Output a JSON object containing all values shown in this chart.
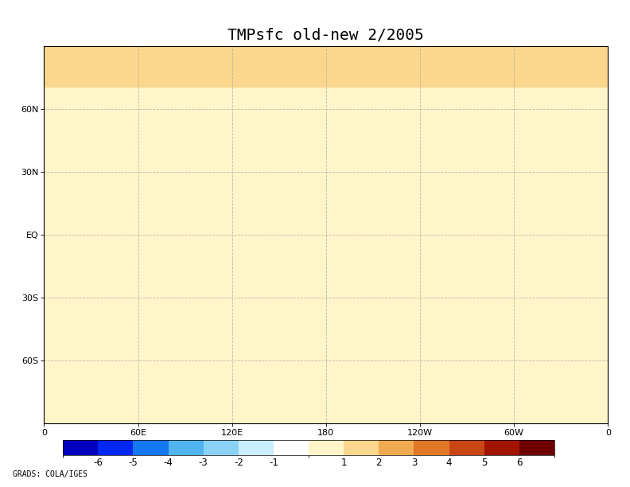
{
  "title": "TMPsfc old-new 2/2005",
  "title_fontsize": 14,
  "colorbar_levels": [
    -7,
    -6,
    -5,
    -4,
    -3,
    -2,
    -1,
    0,
    1,
    2,
    3,
    4,
    5,
    6,
    7
  ],
  "colorbar_colors": [
    "#0000be",
    "#0028f0",
    "#1478f0",
    "#50b4f0",
    "#8ad2f5",
    "#c8eeff",
    "#ffffff",
    "#fff5c8",
    "#fad78c",
    "#f0aa50",
    "#e07828",
    "#c84614",
    "#a01400",
    "#700000"
  ],
  "colorbar_tick_labels": [
    "-6",
    "-5",
    "-4",
    "-3",
    "-2",
    "-1",
    "1",
    "2",
    "3",
    "4",
    "5",
    "6"
  ],
  "colorbar_ticks": [
    -6,
    -5,
    -4,
    -3,
    -2,
    -1,
    1,
    2,
    3,
    4,
    5,
    6
  ],
  "xlabel_ticks": [
    0,
    60,
    120,
    180,
    240,
    300,
    360
  ],
  "xlabel_labels": [
    "0",
    "60E",
    "120E",
    "180",
    "120W",
    "60W",
    "0"
  ],
  "ylabel_ticks": [
    -60,
    -30,
    0,
    30,
    60
  ],
  "ylabel_labels": [
    "60S",
    "30S",
    "EQ",
    "30N",
    "60N"
  ],
  "grid_color": "#aaaaaa",
  "grid_style": "--",
  "grid_alpha": 0.8,
  "grid_lw": 0.6,
  "coastline_color": "#000000",
  "coastline_lw": 0.6,
  "background_color": "#ffffff",
  "footer_text": "GRADS: COLA/IGES",
  "footer_fontsize": 7,
  "figsize": [
    7.92,
    6.12
  ],
  "dpi": 100
}
